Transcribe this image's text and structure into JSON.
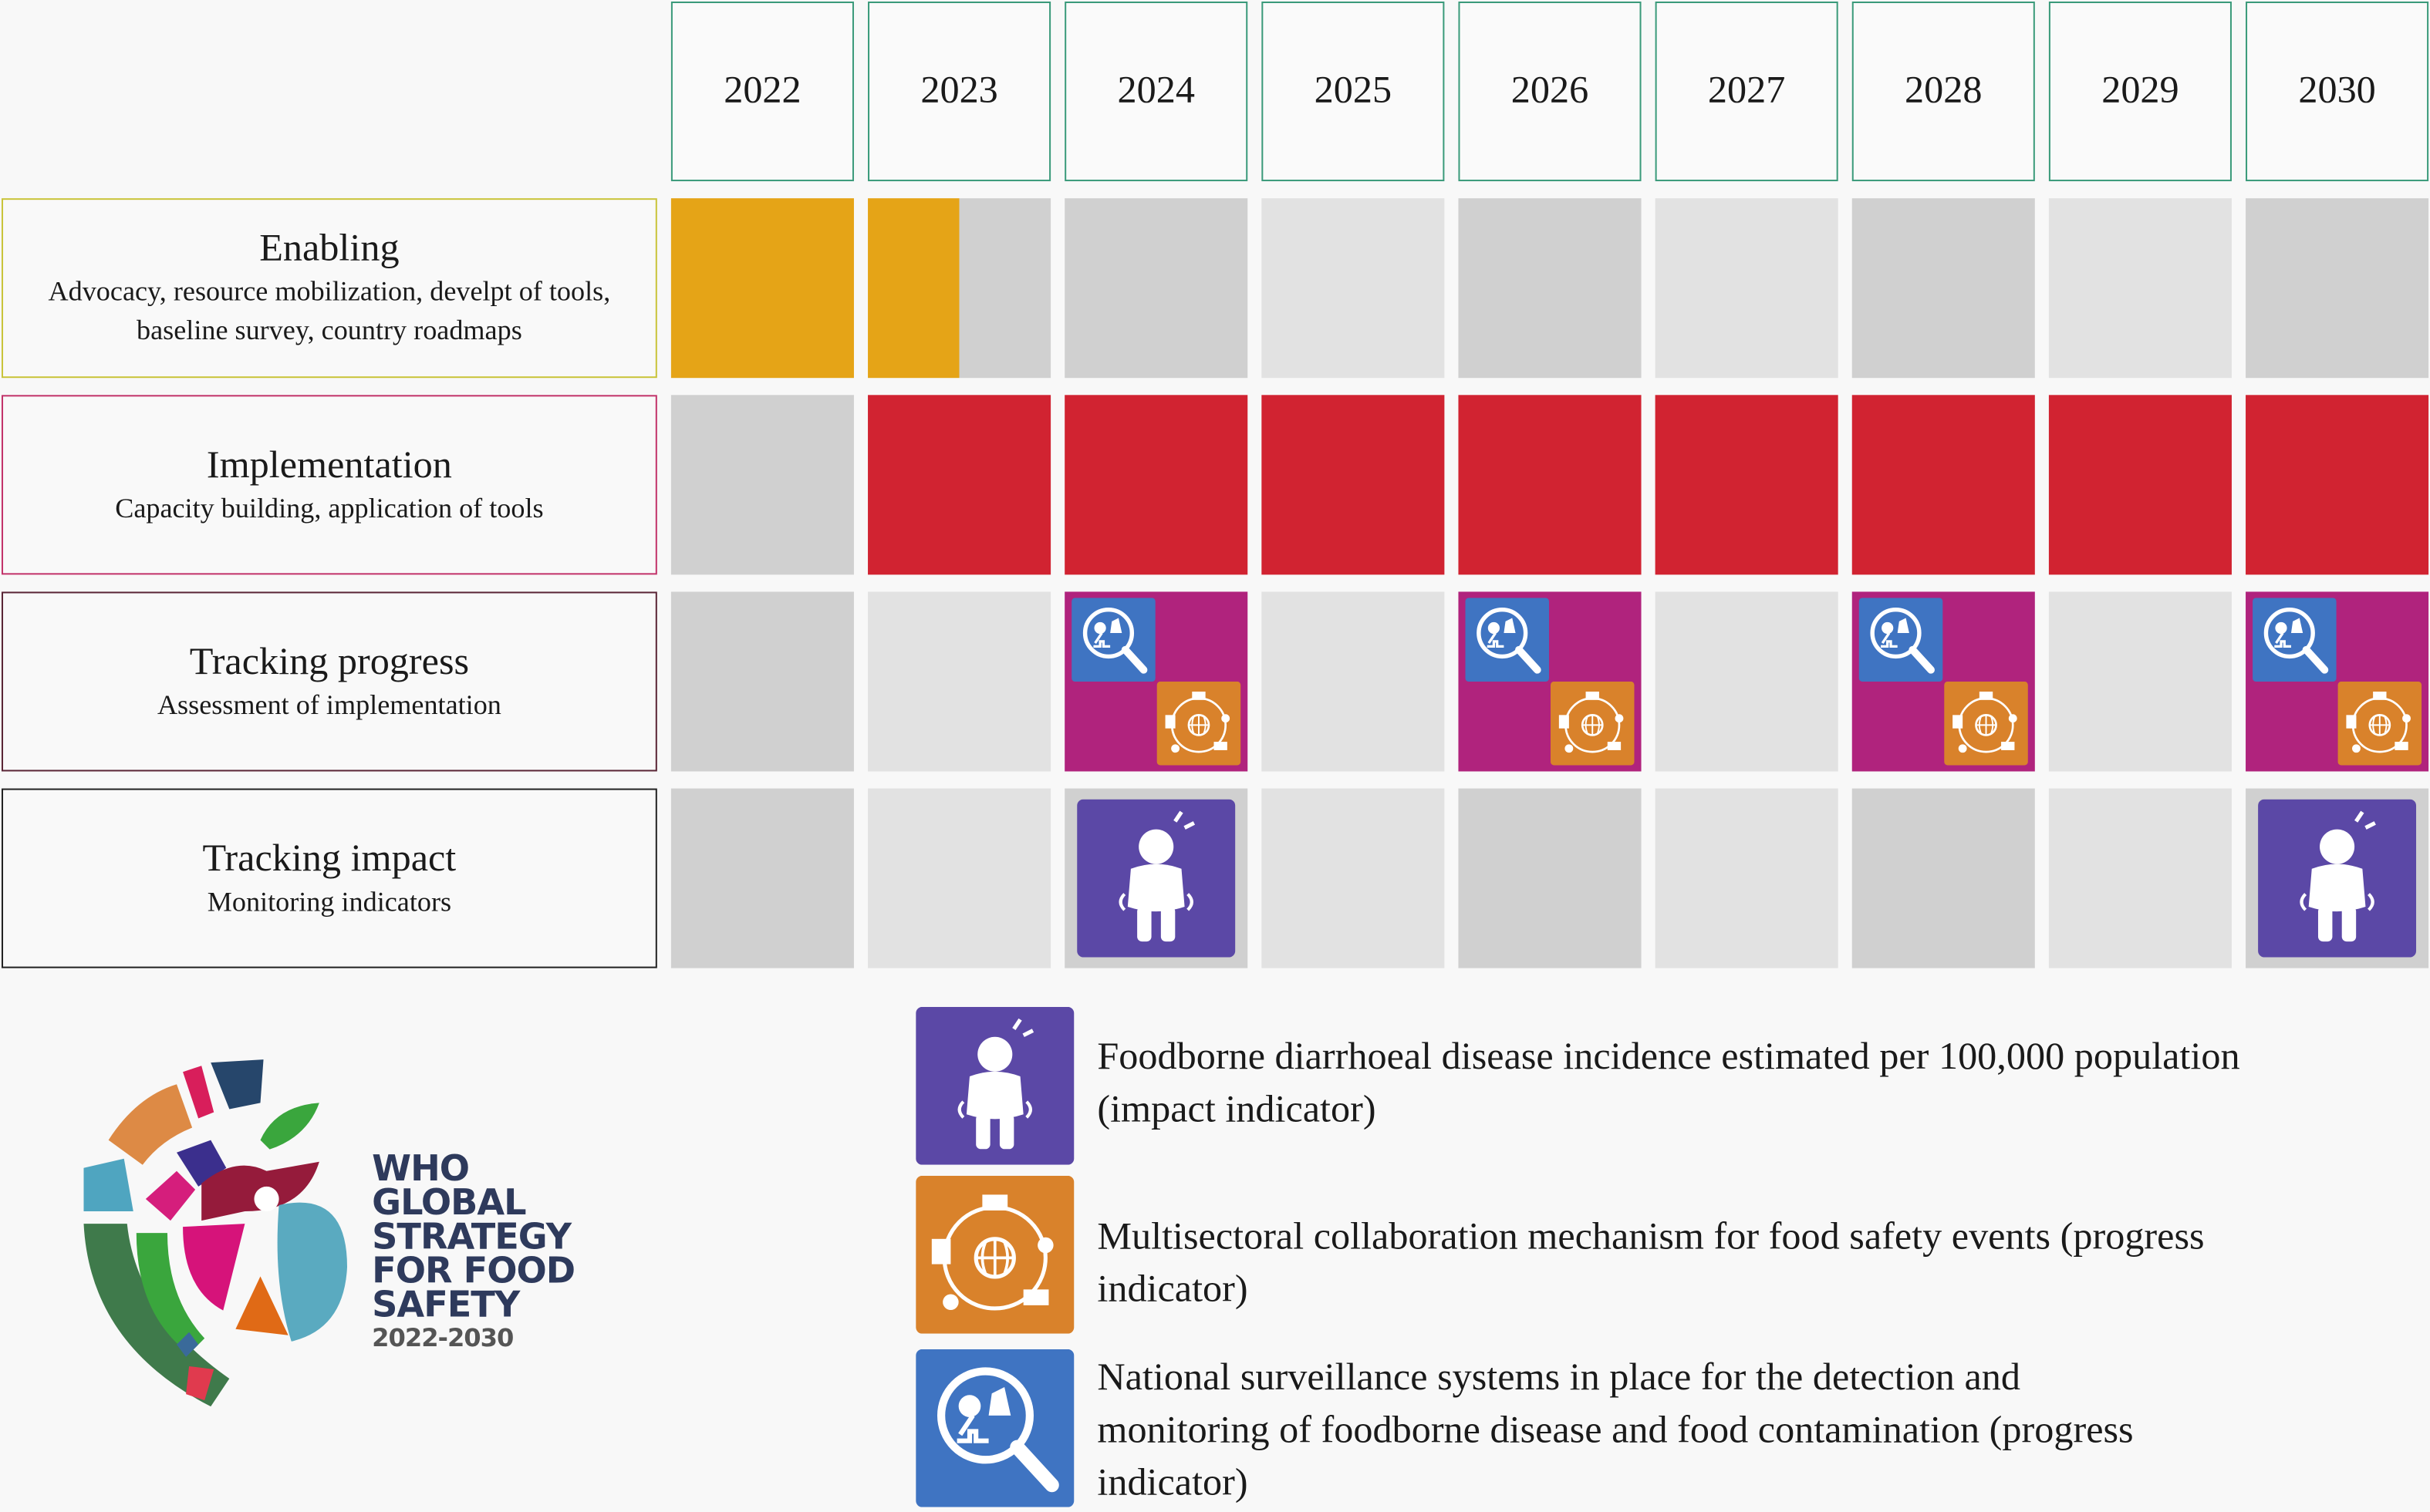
{
  "years": [
    "2022",
    "2023",
    "2024",
    "2025",
    "2026",
    "2027",
    "2028",
    "2029",
    "2030"
  ],
  "rows": [
    {
      "title": "Enabling",
      "subtitle": "Advocacy, resource mobilization, develpt of tools, baseline survey, country roadmaps",
      "border": "#c9c43a",
      "cells": [
        "orange",
        "half",
        "dark",
        "light",
        "dark",
        "light",
        "dark",
        "light",
        "dark"
      ]
    },
    {
      "title": "Implementation",
      "subtitle": "Capacity building, application of tools",
      "border": "#c2336a",
      "cells": [
        "dark",
        "red",
        "red",
        "red",
        "red",
        "red",
        "red",
        "red",
        "red"
      ]
    },
    {
      "title": "Tracking progress",
      "subtitle": "Assessment of implementation",
      "border": "#5a2535",
      "cells": [
        "dark",
        "light",
        "progress",
        "light",
        "progress",
        "light",
        "progress",
        "light",
        "progress"
      ]
    },
    {
      "title": "Tracking impact",
      "subtitle": "Monitoring indicators",
      "border": "#222222",
      "cells": [
        "dark",
        "light",
        "impact",
        "light",
        "dark",
        "light",
        "dark",
        "light",
        "impact"
      ]
    }
  ],
  "colors": {
    "enabling": "#e5a417",
    "implementation": "#d12331",
    "progress": "#b0237d",
    "impact_icon": "#5b48a6",
    "collab_icon": "#d9822b",
    "surveillance_icon": "#3f74c2",
    "gray_dark": "#d0d0d0",
    "gray_light": "#e2e2e2"
  },
  "legend": [
    {
      "icon": "sick-person-icon",
      "text": "Foodborne diarrhoeal disease incidence estimated per 100,000 population (impact indicator)"
    },
    {
      "icon": "multisectoral-globe-icon",
      "text": "Multisectoral collaboration mechanism for food safety events (progress indicator)"
    },
    {
      "icon": "surveillance-magnifier-icon",
      "text": "National surveillance systems in place for the detection and monitoring of foodborne disease and food contamination (progress indicator)"
    }
  ],
  "logo": {
    "line1": "WHO",
    "line2": "GLOBAL",
    "line3": "STRATEGY",
    "line4": "FOR FOOD",
    "line5": "SAFETY",
    "years": "2022-2030"
  }
}
